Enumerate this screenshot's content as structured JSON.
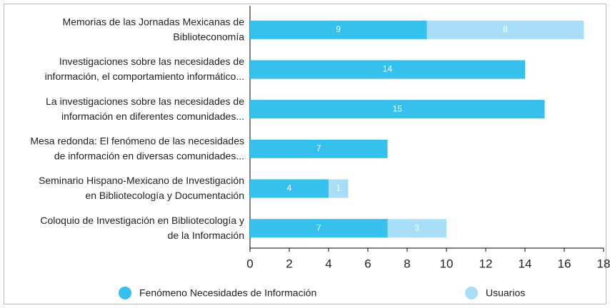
{
  "chart_data": {
    "type": "stacked-barh",
    "categories": [
      [
        "Memorias de las Jornadas Mexicanas de",
        "Biblioteconomía"
      ],
      [
        "Investigaciones sobre las necesidades de",
        "información, el comportamiento informático..."
      ],
      [
        "La investigaciones sobre las necesidades de",
        "información en diferentes comunidades..."
      ],
      [
        "Mesa redonda: El fenómeno de las necesidades",
        "de información en diversas comunidades..."
      ],
      [
        "Seminario Hispano-Mexicano de Investigación",
        "en Bibliotecología y Documentación"
      ],
      [
        "Coloquio de Investigación en Bibliotecología y",
        "de la Información"
      ]
    ],
    "series": [
      {
        "name": "Fenómeno Necesidades de Información",
        "color": "#36c0ee",
        "values": [
          9,
          14,
          15,
          7,
          4,
          7
        ]
      },
      {
        "name": "Usuarios",
        "color": "#a8def8",
        "values": [
          8,
          null,
          null,
          null,
          1,
          3
        ]
      }
    ],
    "xlim": [
      0,
      18
    ],
    "xticks": [
      0,
      2,
      4,
      6,
      8,
      10,
      12,
      14,
      16,
      18
    ]
  }
}
